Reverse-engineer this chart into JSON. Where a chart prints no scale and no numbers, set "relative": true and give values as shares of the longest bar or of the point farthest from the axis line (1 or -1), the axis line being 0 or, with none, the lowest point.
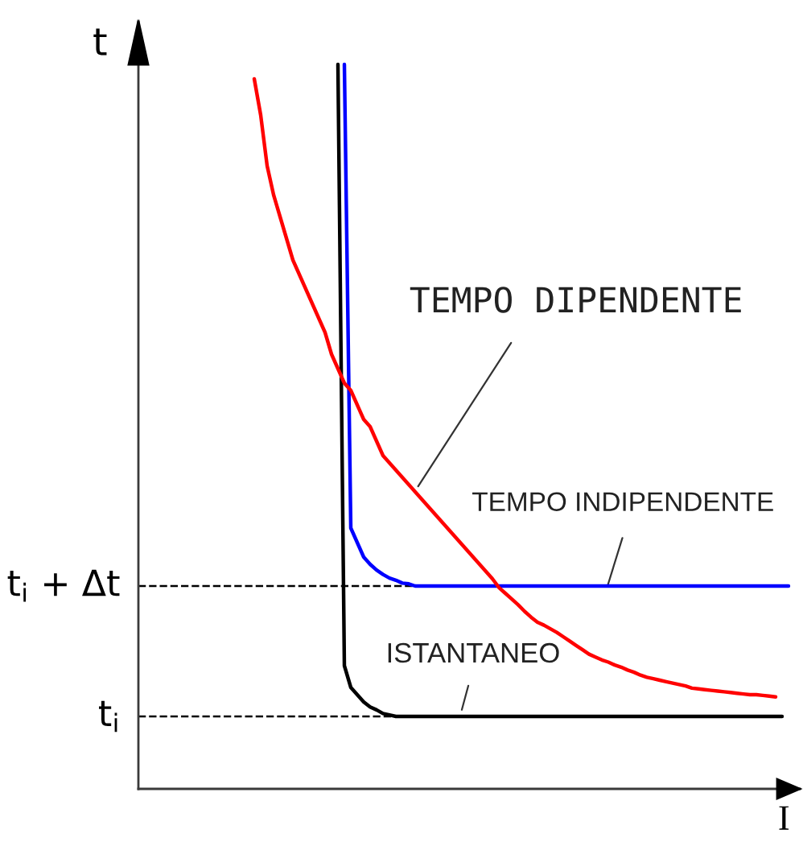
{
  "chart_data": {
    "type": "line",
    "relative": true,
    "xlabel": "I",
    "ylabel": "t",
    "categories": [
      null,
      null,
      null,
      null,
      null,
      null,
      null,
      null,
      null,
      null,
      null,
      null,
      null,
      null,
      null,
      null,
      null,
      null,
      null,
      null,
      null,
      null,
      null,
      null,
      null,
      null,
      null,
      null,
      null,
      null,
      null,
      null,
      null,
      null,
      null,
      null,
      null,
      null,
      null,
      null,
      null,
      null,
      null,
      null,
      null,
      null,
      null,
      null,
      null,
      null,
      null,
      null,
      null,
      null,
      null,
      null,
      null,
      null,
      null,
      null,
      null,
      null,
      null,
      null,
      null,
      null,
      null,
      null,
      null,
      null,
      null,
      null,
      null,
      null,
      null,
      null,
      null,
      null,
      null,
      null,
      null,
      null,
      null,
      null,
      null,
      null,
      null,
      null,
      null,
      null,
      null,
      null,
      null,
      null,
      null,
      null,
      null,
      null,
      null,
      null,
      null
    ],
    "series": [
      {
        "color": "#000000",
        "values": [
          null,
          null,
          null,
          null,
          null,
          null,
          null,
          null,
          null,
          null,
          null,
          null,
          null,
          null,
          null,
          null,
          null,
          null,
          null,
          null,
          null,
          null,
          null,
          null,
          null,
          null,
          null,
          null,
          null,
          null,
          1.0,
          0.17,
          0.14,
          0.13,
          0.12,
          0.113,
          0.109,
          0.104,
          0.102,
          0.1,
          0.1,
          0.1,
          0.1,
          0.1,
          0.1,
          0.1,
          0.1,
          0.1,
          0.1,
          0.1,
          0.1,
          0.1,
          0.1,
          0.1,
          0.1,
          0.1,
          0.1,
          0.1,
          0.1,
          0.1,
          0.1,
          0.1,
          0.1,
          0.1,
          0.1,
          0.1,
          0.1,
          0.1,
          0.1,
          0.1,
          0.1,
          0.1,
          0.1,
          0.1,
          0.1,
          0.1,
          0.1,
          0.1,
          0.1,
          0.1,
          0.1,
          0.1,
          0.1,
          0.1,
          0.1,
          0.1,
          0.1,
          0.1,
          0.1,
          0.1,
          0.1,
          0.1,
          0.1,
          0.1,
          0.1,
          0.1,
          0.1,
          0.1,
          0.1,
          0.1,
          null
        ]
      },
      {
        "color": "#0000ff",
        "values": [
          null,
          null,
          null,
          null,
          null,
          null,
          null,
          null,
          null,
          null,
          null,
          null,
          null,
          null,
          null,
          null,
          null,
          null,
          null,
          null,
          null,
          null,
          null,
          null,
          null,
          null,
          null,
          null,
          null,
          null,
          null,
          1.0,
          0.36,
          0.34,
          0.32,
          0.31,
          0.302,
          0.296,
          0.291,
          0.288,
          0.284,
          0.283,
          0.28,
          0.28,
          0.28,
          0.28,
          0.28,
          0.28,
          0.28,
          0.28,
          0.28,
          0.28,
          0.28,
          0.28,
          0.28,
          0.28,
          0.28,
          0.28,
          0.28,
          0.28,
          0.28,
          0.28,
          0.28,
          0.28,
          0.28,
          0.28,
          0.28,
          0.28,
          0.28,
          0.28,
          0.28,
          0.28,
          0.28,
          0.28,
          0.28,
          0.28,
          0.28,
          0.28,
          0.28,
          0.28,
          0.28,
          0.28,
          0.28,
          0.28,
          0.28,
          0.28,
          0.28,
          0.28,
          0.28,
          0.28,
          0.28,
          0.28,
          0.28,
          0.28,
          0.28,
          0.28,
          0.28,
          0.28,
          0.28,
          0.28,
          0.28
        ]
      },
      {
        "color": "#ff0000",
        "values": [
          null,
          null,
          null,
          null,
          null,
          null,
          null,
          null,
          null,
          null,
          null,
          null,
          null,
          null,
          null,
          null,
          null,
          0.98,
          0.93,
          0.86,
          0.82,
          0.79,
          0.76,
          0.73,
          0.71,
          0.69,
          0.67,
          0.65,
          0.63,
          0.6,
          0.58,
          0.56,
          0.55,
          0.53,
          0.51,
          0.5,
          0.48,
          0.46,
          0.45,
          0.44,
          0.43,
          0.42,
          0.41,
          0.4,
          0.39,
          0.38,
          0.37,
          0.36,
          0.35,
          0.34,
          0.33,
          0.32,
          0.31,
          0.3,
          0.29,
          0.278,
          0.27,
          0.262,
          0.254,
          0.245,
          0.237,
          0.23,
          0.226,
          0.221,
          0.216,
          0.21,
          0.204,
          0.198,
          0.192,
          0.186,
          0.182,
          0.178,
          0.175,
          0.171,
          0.168,
          0.164,
          0.161,
          0.157,
          0.154,
          0.152,
          0.15,
          0.148,
          0.146,
          0.144,
          0.142,
          0.139,
          0.138,
          0.137,
          0.136,
          0.135,
          0.134,
          0.133,
          0.132,
          0.131,
          0.13,
          0.13,
          0.129,
          0.128,
          0.127,
          null,
          null
        ]
      }
    ],
    "ref_lines": [
      {
        "axis": "y",
        "value": 0.28,
        "label": "t$_{i}$ + Δt",
        "color": "#000000",
        "line_style": "dashed"
      },
      {
        "axis": "y",
        "value": 0.1,
        "label": "t$_{i}$",
        "color": "#000000",
        "line_style": "dashed"
      }
    ],
    "annotations": [
      "TEMPO DIPENDENTE",
      "TEMPO INDIPENDENTE",
      "ISTANTANEO"
    ]
  }
}
